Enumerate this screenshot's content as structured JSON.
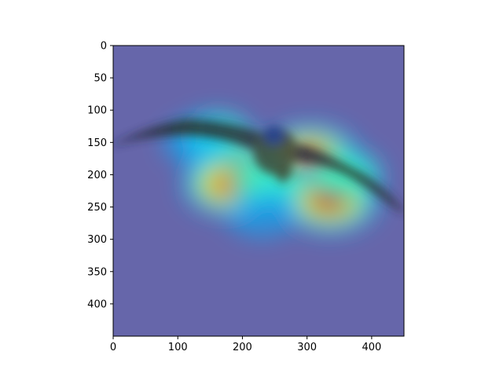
{
  "chart_data": {
    "type": "heatmap",
    "title": "",
    "xlabel": "",
    "ylabel": "",
    "xlim": [
      0,
      450
    ],
    "ylim": [
      450,
      0
    ],
    "y_axis_inverted": true,
    "grid": false,
    "colormap": "jet",
    "background_hex": "#6666aa",
    "x_ticks": [
      0,
      100,
      200,
      300,
      400
    ],
    "x_tick_labels": [
      "0",
      "100",
      "200",
      "300",
      "400"
    ],
    "y_ticks": [
      0,
      50,
      100,
      150,
      200,
      250,
      300,
      350,
      400
    ],
    "y_tick_labels": [
      "0",
      "50",
      "100",
      "150",
      "200",
      "250",
      "300",
      "350",
      "400"
    ],
    "image_subject": "bird-in-flight",
    "hotspots": [
      {
        "x": 195,
        "y": 190,
        "intensity": 0.95
      },
      {
        "x": 180,
        "y": 215,
        "intensity": 0.85
      },
      {
        "x": 305,
        "y": 175,
        "intensity": 1.0
      },
      {
        "x": 335,
        "y": 238,
        "intensity": 0.98
      },
      {
        "x": 240,
        "y": 210,
        "intensity": 0.55
      },
      {
        "x": 160,
        "y": 140,
        "intensity": 0.45
      },
      {
        "x": 360,
        "y": 200,
        "intensity": 0.5
      },
      {
        "x": 230,
        "y": 260,
        "intensity": 0.4
      },
      {
        "x": 130,
        "y": 150,
        "intensity": 0.35
      }
    ]
  }
}
